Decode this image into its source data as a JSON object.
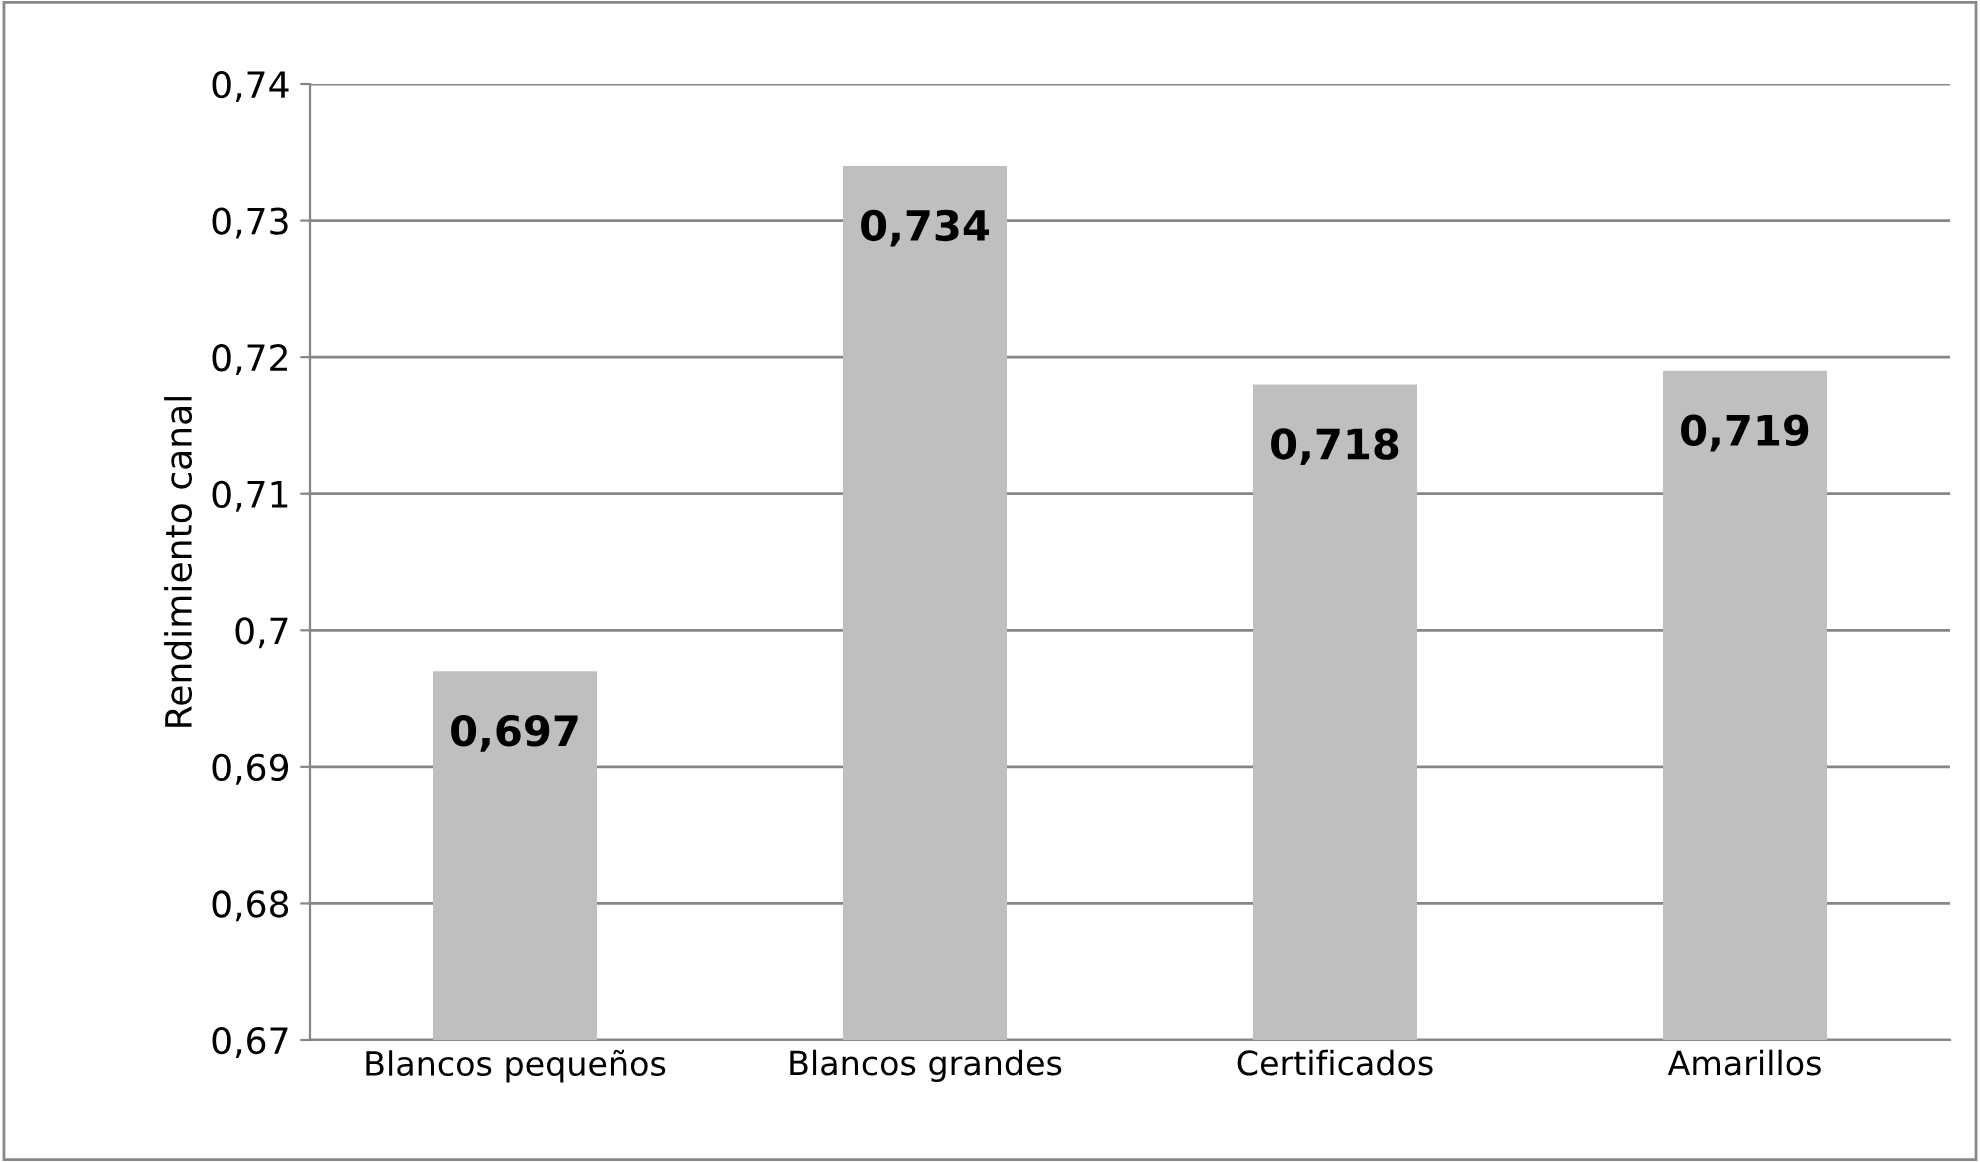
{
  "chart_data": {
    "type": "bar",
    "ylabel": "Rendimiento canal",
    "categories": [
      "Blancos pequeños",
      "Blancos grandes",
      "Certificados",
      "Amarillos"
    ],
    "values": [
      0.697,
      0.734,
      0.718,
      0.719
    ],
    "value_labels": [
      "0,697",
      "0,734",
      "0,718",
      "0,719"
    ],
    "color": "#bfbfbf",
    "ylim": [
      0.67,
      0.74
    ],
    "yticks": [
      {
        "value": 0.67,
        "label": "0,67"
      },
      {
        "value": 0.68,
        "label": "0,68"
      },
      {
        "value": 0.69,
        "label": "0,69"
      },
      {
        "value": 0.7,
        "label": "0,7"
      },
      {
        "value": 0.71,
        "label": "0,71"
      },
      {
        "value": 0.72,
        "label": "0,72"
      },
      {
        "value": 0.73,
        "label": "0,73"
      },
      {
        "value": 0.74,
        "label": "0,74"
      }
    ],
    "grid": "y"
  }
}
